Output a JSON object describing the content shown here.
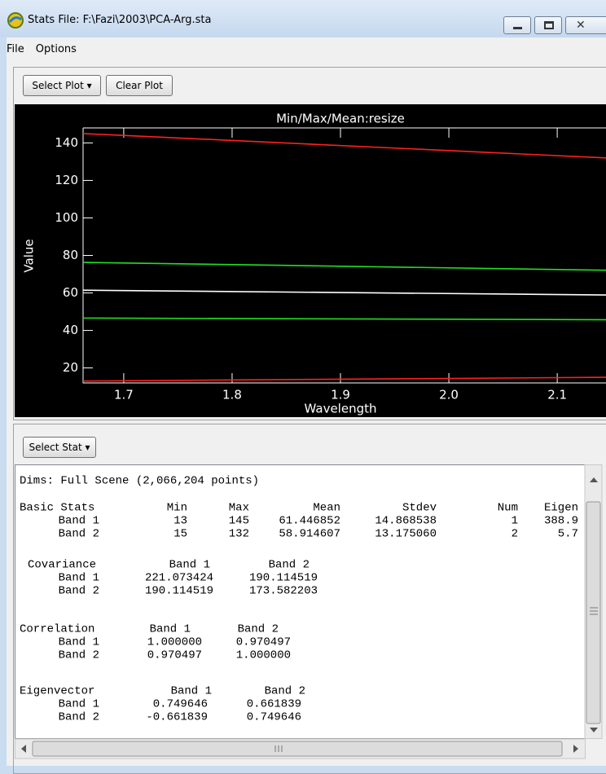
{
  "window": {
    "title": "Stats File: F:\\Fazi\\2003\\PCA-Arg.sta"
  },
  "menu": [
    "File",
    "Options"
  ],
  "plot_toolbar": {
    "select_plot": "Select Plot",
    "clear_plot": "Clear Plot"
  },
  "chart_data": {
    "type": "line",
    "title": "Min/Max/Mean:resize",
    "x_label": "Wavelength",
    "y_label": "Value",
    "x": [
      1.6625,
      2.145
    ],
    "series": [
      {
        "color": "#ff2020",
        "values": [
          145,
          132
        ]
      },
      {
        "color": "#ff2020",
        "values": [
          13,
          15
        ]
      },
      {
        "color": "#ffffff",
        "values": [
          61.446852,
          58.914607
        ]
      },
      {
        "color": "#20e020",
        "values": [
          76.3,
          72.1
        ]
      },
      {
        "color": "#20e020",
        "values": [
          46.6,
          45.7
        ]
      }
    ],
    "xlim": [
      1.6625,
      2.145
    ],
    "xticks": [
      1.7,
      1.8,
      1.9,
      {
        "value": 2.0,
        "label": "2.0"
      },
      2.1
    ],
    "ylim": [
      12,
      148
    ],
    "yticks": [
      20,
      40,
      60,
      80,
      100,
      120,
      140
    ],
    "background": "#000000",
    "axis_color": "#ffffff"
  },
  "stats": {
    "button": "Select Stat",
    "dims": "Dims: Full Scene (2,066,204 points)",
    "sections": [
      {
        "title": "Basic Stats",
        "columns": [
          "Min",
          "Max",
          "Mean",
          "Stdev",
          "Num",
          "Eigen"
        ],
        "rows": [
          [
            "Band 1",
            "13",
            "145",
            "61.446852",
            "14.868538",
            "1",
            "388.9"
          ],
          [
            "Band 2",
            "15",
            "132",
            "58.914607",
            "13.175060",
            "2",
            "5.7"
          ]
        ]
      },
      {
        "title": "Covariance",
        "columns": [
          "Band 1",
          "Band 2"
        ],
        "rows": [
          [
            "Band 1",
            "221.073424",
            "190.114519"
          ],
          [
            "Band 2",
            "190.114519",
            "173.582203"
          ]
        ]
      },
      {
        "title": "Correlation",
        "columns": [
          "Band 1",
          "Band 2"
        ],
        "rows": [
          [
            "Band 1",
            "1.000000",
            "0.970497"
          ],
          [
            "Band 2",
            "0.970497",
            "1.000000"
          ]
        ]
      },
      {
        "title": "Eigenvector",
        "columns": [
          "Band 1",
          "Band 2"
        ],
        "rows": [
          [
            "Band 1",
            "0.749646",
            "0.661839"
          ],
          [
            "Band 2",
            "-0.661839",
            "0.749646"
          ]
        ]
      }
    ]
  }
}
